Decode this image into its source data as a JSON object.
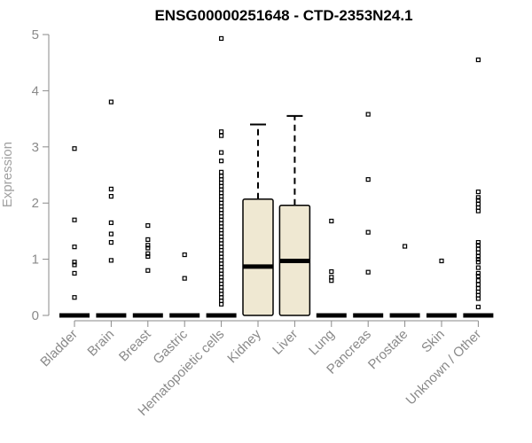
{
  "chart_data": {
    "type": "box",
    "title": "ENSG00000251648 - CTD-2353N24.1",
    "ylabel": "Expression",
    "xlabel": "",
    "ylim": [
      0,
      5
    ],
    "yticks": [
      "0",
      "1",
      "2",
      "3",
      "4",
      "5"
    ],
    "box_fill": "#efe8d2",
    "categories": [
      "Bladder",
      "Brain",
      "Breast",
      "Gastric",
      "Hematopoietic cells",
      "Kidney",
      "Liver",
      "Lung",
      "Pancreas",
      "Prostate",
      "Skin",
      "Unknown / Other"
    ],
    "boxes": [
      {
        "q1": 0,
        "median": 0,
        "q3": 0,
        "whisker_low": 0,
        "whisker_high": 0,
        "outliers": [
          2.97,
          1.7,
          1.22,
          0.95,
          0.9,
          0.75,
          0.32
        ]
      },
      {
        "q1": 0,
        "median": 0,
        "q3": 0,
        "whisker_low": 0,
        "whisker_high": 0,
        "outliers": [
          3.8,
          2.25,
          2.12,
          1.65,
          1.45,
          1.3,
          0.98
        ]
      },
      {
        "q1": 0,
        "median": 0,
        "q3": 0,
        "whisker_low": 0,
        "whisker_high": 0,
        "outliers": [
          1.6,
          1.35,
          1.25,
          1.2,
          1.1,
          1.05,
          0.8
        ]
      },
      {
        "q1": 0,
        "median": 0,
        "q3": 0,
        "whisker_low": 0,
        "whisker_high": 0,
        "outliers": [
          1.08,
          0.66
        ]
      },
      {
        "q1": 0,
        "median": 0,
        "q3": 0,
        "whisker_low": 0,
        "whisker_high": 0,
        "outliers": [
          4.93,
          3.27,
          3.2,
          2.9,
          2.75,
          2.55,
          2.48,
          2.42,
          2.36,
          2.3,
          2.24,
          2.18,
          2.12,
          2.06,
          2.0,
          1.94,
          1.88,
          1.82,
          1.76,
          1.7,
          1.64,
          1.58,
          1.52,
          1.46,
          1.4,
          1.34,
          1.28,
          1.22,
          1.16,
          1.1,
          1.04,
          0.98,
          0.92,
          0.86,
          0.8,
          0.74,
          0.68,
          0.62,
          0.56,
          0.5,
          0.44,
          0.38,
          0.32,
          0.26,
          0.2
        ]
      },
      {
        "q1": 0,
        "median": 0.87,
        "q3": 2.07,
        "whisker_low": 0,
        "whisker_high": 3.4,
        "outliers": []
      },
      {
        "q1": 0,
        "median": 0.97,
        "q3": 1.96,
        "whisker_low": 0,
        "whisker_high": 3.55,
        "outliers": []
      },
      {
        "q1": 0,
        "median": 0,
        "q3": 0,
        "whisker_low": 0,
        "whisker_high": 0,
        "outliers": [
          1.68,
          0.78,
          0.68,
          0.62
        ]
      },
      {
        "q1": 0,
        "median": 0,
        "q3": 0,
        "whisker_low": 0,
        "whisker_high": 0,
        "outliers": [
          3.58,
          2.42,
          1.48,
          0.77
        ]
      },
      {
        "q1": 0,
        "median": 0,
        "q3": 0,
        "whisker_low": 0,
        "whisker_high": 0,
        "outliers": [
          1.23
        ]
      },
      {
        "q1": 0,
        "median": 0,
        "q3": 0,
        "whisker_low": 0,
        "whisker_high": 0,
        "outliers": [
          0.97
        ]
      },
      {
        "q1": 0,
        "median": 0,
        "q3": 0,
        "whisker_low": 0,
        "whisker_high": 0,
        "outliers": [
          4.55,
          2.2,
          2.1,
          2.05,
          1.98,
          1.92,
          1.86,
          1.3,
          1.25,
          1.18,
          1.12,
          1.05,
          1.0,
          0.95,
          0.85,
          0.75,
          0.7,
          0.62,
          0.55,
          0.48,
          0.42,
          0.36,
          0.3,
          0.15
        ]
      }
    ]
  }
}
